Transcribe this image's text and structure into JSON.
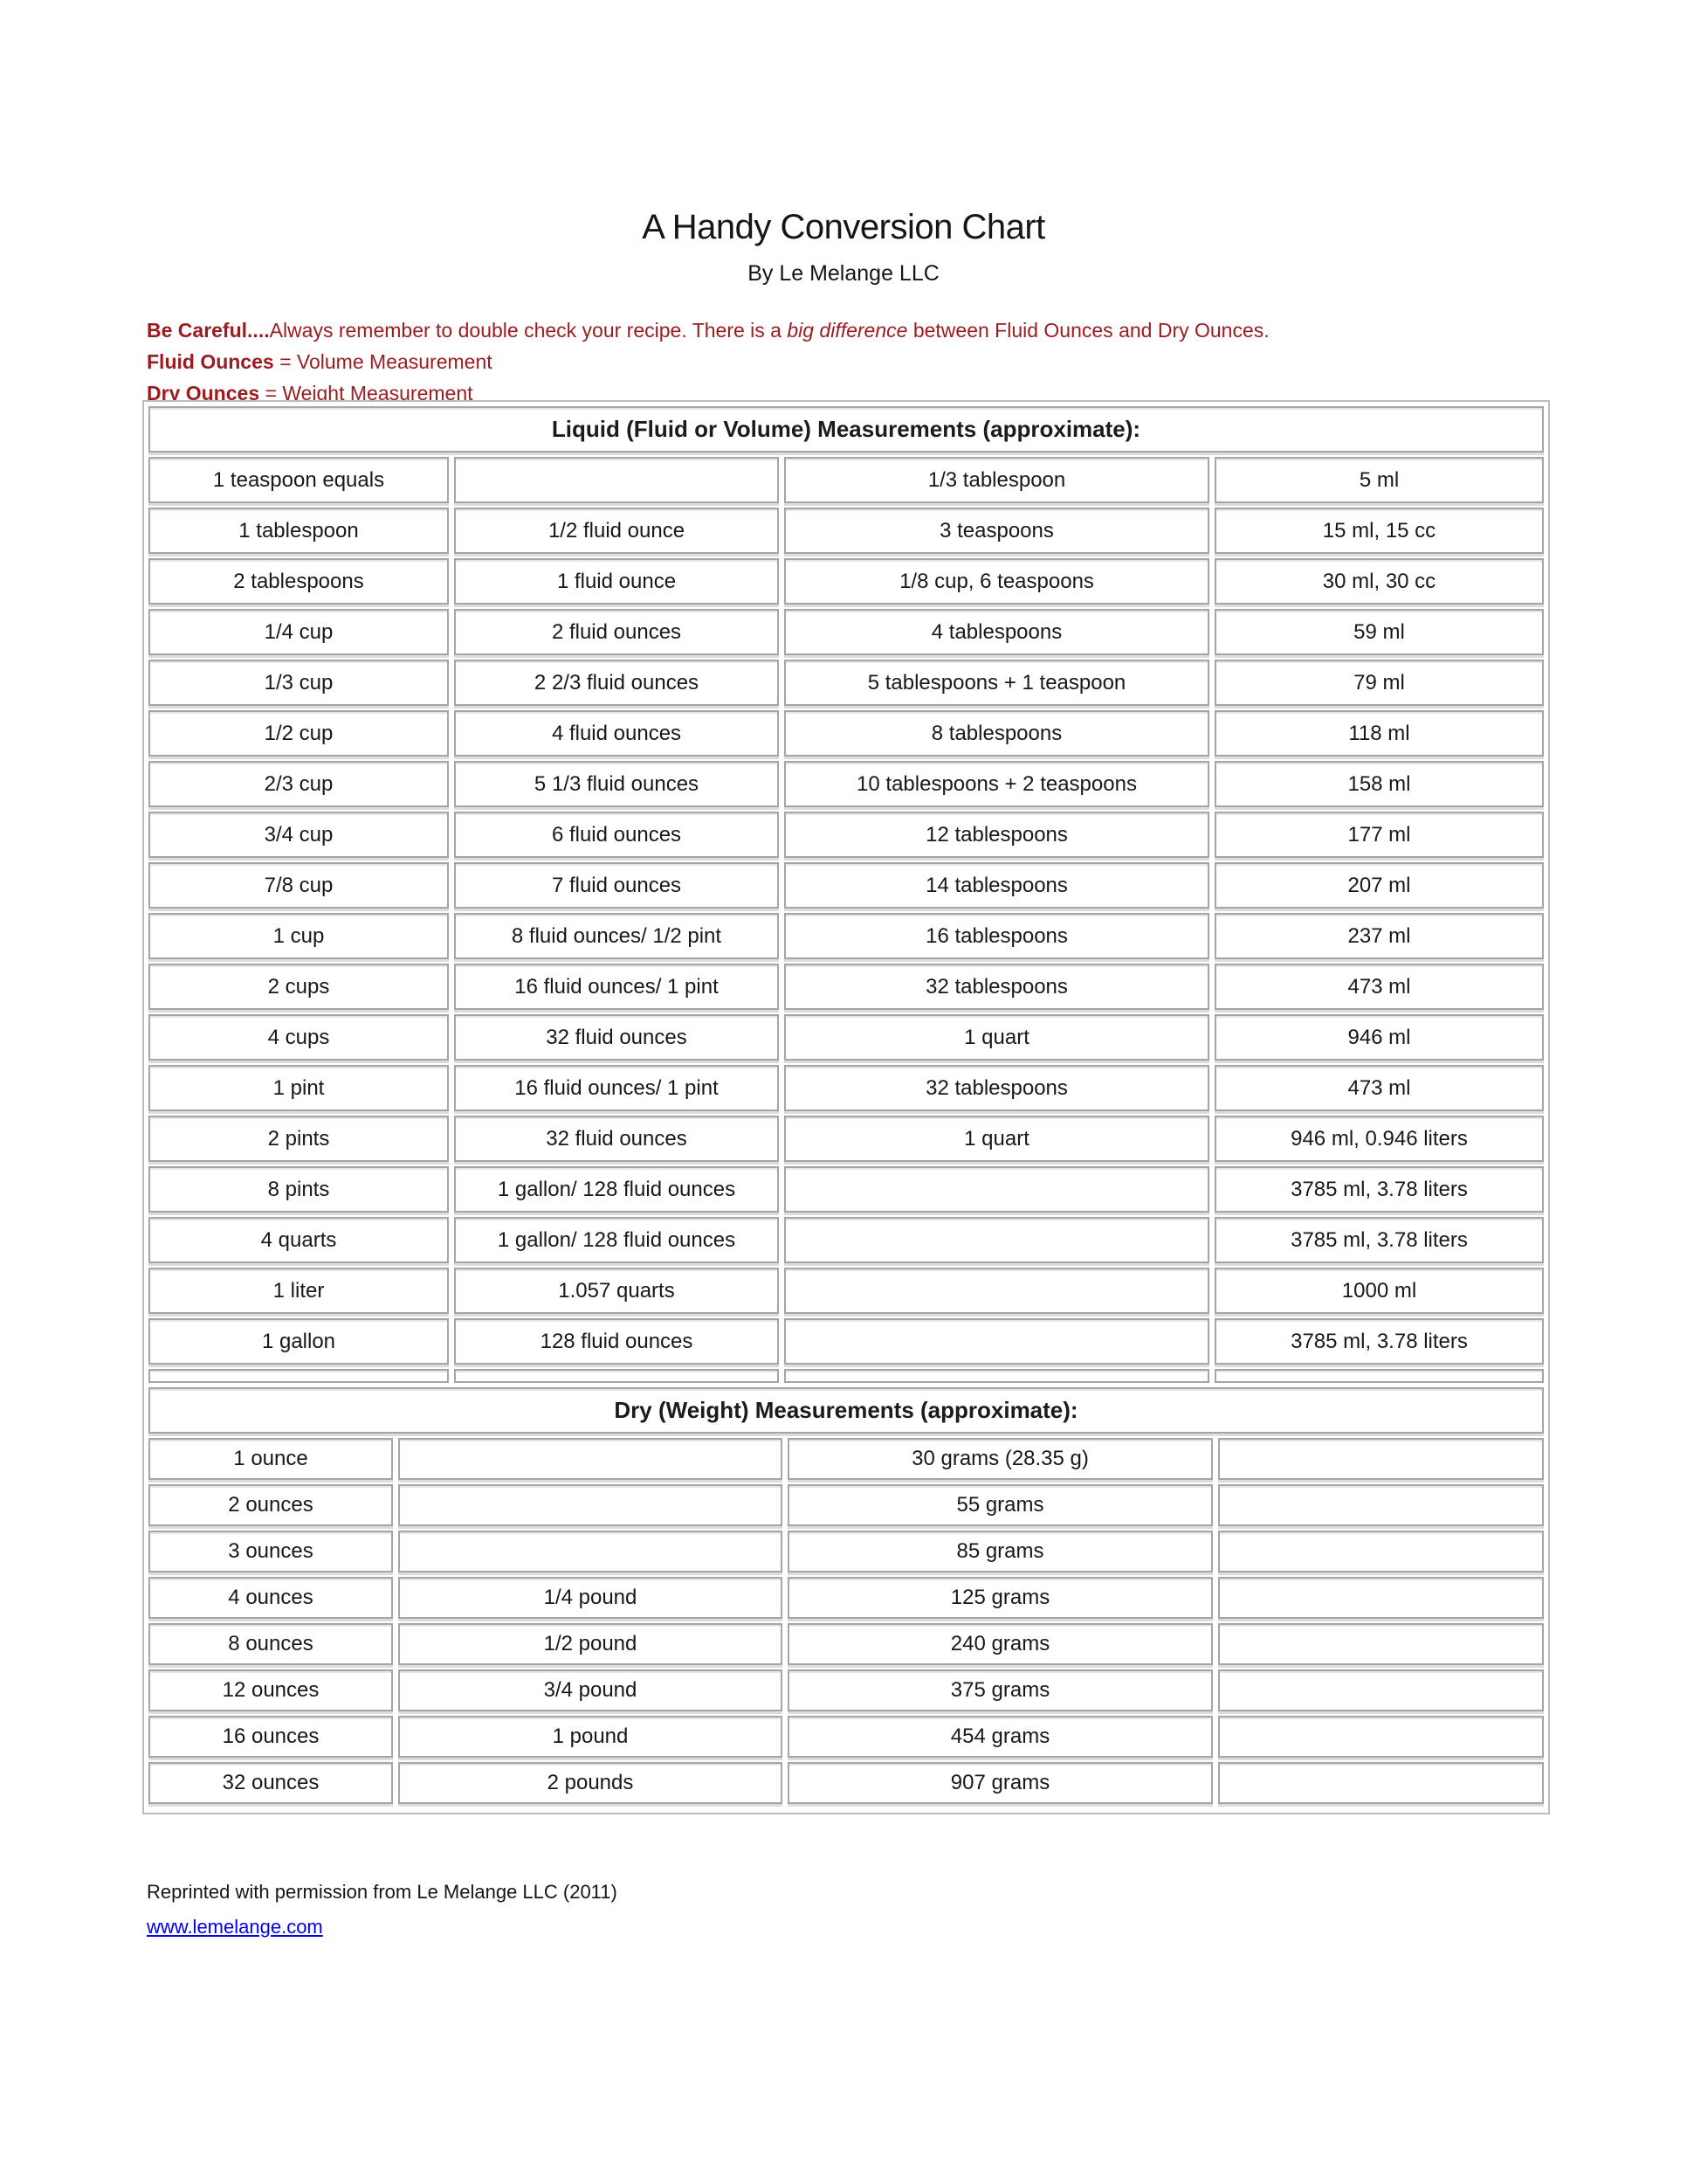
{
  "page": {
    "title": "A Handy Conversion Chart",
    "subtitle": "By Le Melange LLC",
    "warning": {
      "line1_bold": "Be Careful....",
      "line1_pre": "Always remember to double check your recipe. There is a ",
      "line1_italic": "big difference",
      "line1_post": " between Fluid Ounces and Dry Ounces.",
      "line2_bold": "Fluid Ounces",
      "line2_rest": " = Volume Measurement",
      "line3_bold": "Dry Ounces",
      "line3_rest": " = Weight Measurement"
    },
    "footer": {
      "credit": "Reprinted with permission from Le Melange LLC (2011)",
      "link": "www.lemelange.com"
    },
    "colors": {
      "accent_red": "#9B1B1E",
      "link_blue": "#0000EE",
      "border_gray": "#A5A5A5"
    }
  },
  "liquid_table": {
    "header": "Liquid (Fluid or Volume) Measurements (approximate):",
    "rows": [
      [
        "1 teaspoon equals",
        "",
        "1/3 tablespoon",
        "5 ml"
      ],
      [
        "1 tablespoon",
        "1/2 fluid ounce",
        "3 teaspoons",
        "15 ml, 15 cc"
      ],
      [
        "2 tablespoons",
        "1 fluid ounce",
        "1/8 cup, 6 teaspoons",
        "30 ml, 30 cc"
      ],
      [
        "1/4 cup",
        "2 fluid ounces",
        "4 tablespoons",
        "59 ml"
      ],
      [
        "1/3 cup",
        "2 2/3 fluid ounces",
        "5 tablespoons + 1 teaspoon",
        "79 ml"
      ],
      [
        "1/2 cup",
        "4 fluid ounces",
        "8 tablespoons",
        "118 ml"
      ],
      [
        "2/3 cup",
        "5 1/3 fluid ounces",
        "10 tablespoons + 2 teaspoons",
        "158 ml"
      ],
      [
        "3/4 cup",
        "6 fluid ounces",
        "12 tablespoons",
        "177 ml"
      ],
      [
        "7/8 cup",
        "7 fluid ounces",
        "14 tablespoons",
        "207 ml"
      ],
      [
        "1 cup",
        "8 fluid ounces/ 1/2 pint",
        "16 tablespoons",
        "237 ml"
      ],
      [
        "2 cups",
        "16 fluid ounces/ 1 pint",
        "32 tablespoons",
        "473 ml"
      ],
      [
        "4 cups",
        "32 fluid ounces",
        "1 quart",
        "946 ml"
      ],
      [
        "1 pint",
        "16 fluid ounces/ 1 pint",
        "32 tablespoons",
        "473 ml"
      ],
      [
        "2 pints",
        "32 fluid ounces",
        "1 quart",
        "946 ml, 0.946 liters"
      ],
      [
        "8 pints",
        "1 gallon/ 128 fluid ounces",
        "",
        "3785 ml, 3.78 liters"
      ],
      [
        "4 quarts",
        "1 gallon/ 128 fluid ounces",
        "",
        "3785 ml, 3.78 liters"
      ],
      [
        "1 liter",
        "1.057 quarts",
        "",
        "1000 ml"
      ],
      [
        "1 gallon",
        "128 fluid ounces",
        "",
        "3785 ml, 3.78 liters"
      ]
    ]
  },
  "dry_table": {
    "header": "Dry (Weight) Measurements (approximate):",
    "rows": [
      [
        "1 ounce",
        "",
        "30 grams (28.35 g)",
        ""
      ],
      [
        "2 ounces",
        "",
        "55 grams",
        ""
      ],
      [
        "3 ounces",
        "",
        "85 grams",
        ""
      ],
      [
        "4 ounces",
        "1/4 pound",
        "125 grams",
        ""
      ],
      [
        "8 ounces",
        "1/2 pound",
        "240 grams",
        ""
      ],
      [
        "12 ounces",
        "3/4 pound",
        "375 grams",
        ""
      ],
      [
        "16 ounces",
        "1 pound",
        "454 grams",
        ""
      ],
      [
        "32 ounces",
        "2 pounds",
        "907 grams",
        ""
      ]
    ]
  }
}
